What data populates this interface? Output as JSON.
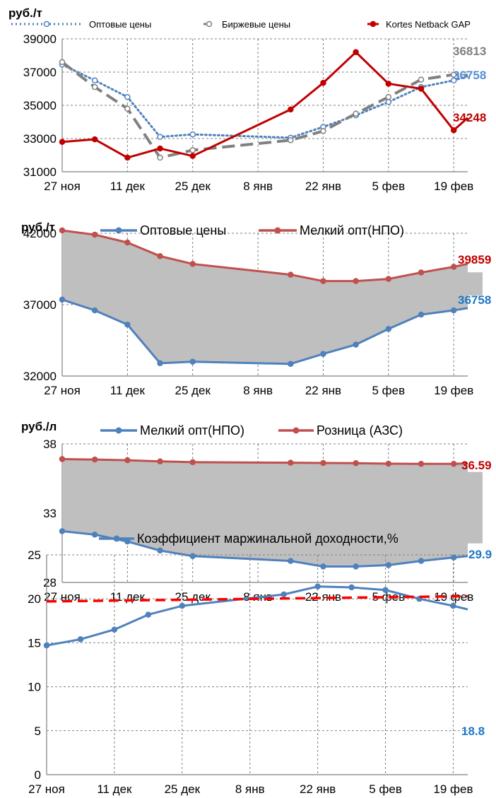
{
  "chart_data": [
    {
      "type": "line",
      "ylabel": "руб./т",
      "x": [
        "27 ноя",
        "4 дек",
        "11 дек",
        "18 дек",
        "25 дек",
        "15 янв",
        "22 янв",
        "29 янв",
        "5 фев",
        "12 фев",
        "19 фев",
        "22 фев"
      ],
      "x_ticks": [
        "27 ноя",
        "11 дек",
        "25 дек",
        "8 янв",
        "22 янв",
        "5 фев",
        "19 фев"
      ],
      "ylim": [
        31000,
        39000
      ],
      "y_ticks": [
        "31000",
        "33000",
        "35000",
        "37000",
        "39000"
      ],
      "grid": true,
      "legend_position": "top",
      "series": [
        {
          "name": "Оптовые цены",
          "color": "#4f81bd",
          "style": "dotted",
          "points": [
            [
              "27 ноя",
              37450
            ],
            [
              "4 дек",
              36500
            ],
            [
              "11 дек",
              35500
            ],
            [
              "18 дек",
              33100
            ],
            [
              "25 дек",
              33250
            ],
            [
              "15 янв",
              33050
            ],
            [
              "22 янв",
              33700
            ],
            [
              "29 янв",
              34400
            ],
            [
              "5 фев",
              35200
            ],
            [
              "12 фев",
              36100
            ],
            [
              "19 фев",
              36500
            ],
            [
              "22 фев",
              36758
            ]
          ]
        },
        {
          "name": "Биржевые цены",
          "color": "#808080",
          "style": "dashed",
          "points": [
            [
              "27 ноя",
              37600
            ],
            [
              "4 дек",
              36100
            ],
            [
              "11 дек",
              34800
            ],
            [
              "18 дек",
              31850
            ],
            [
              "25 дек",
              32300
            ],
            [
              "15 янв",
              32900
            ],
            [
              "22 янв",
              33450
            ],
            [
              "29 янв",
              34500
            ],
            [
              "5 фев",
              35500
            ],
            [
              "12 фев",
              36550
            ],
            [
              "19 фев",
              36850
            ],
            [
              "22 фев",
              36813
            ]
          ]
        },
        {
          "name": "Kortes Netback GAP",
          "color": "#c00000",
          "style": "solid",
          "points": [
            [
              "27 ноя",
              32800
            ],
            [
              "4 дек",
              32950
            ],
            [
              "11 дек",
              31850
            ],
            [
              "18 дек",
              32400
            ],
            [
              "25 дек",
              31950
            ],
            [
              "15 янв",
              34750
            ],
            [
              "22 янв",
              36350
            ],
            [
              "29 янв",
              38200
            ],
            [
              "5 фев",
              36300
            ],
            [
              "12 фев",
              36000
            ],
            [
              "19 фев",
              33500
            ],
            [
              "22 фев",
              34248
            ]
          ]
        }
      ],
      "end_labels": [
        {
          "text": "36813",
          "color": "#808080"
        },
        {
          "text": "36758",
          "color": "#548dd4"
        },
        {
          "text": "34248",
          "color": "#c00000"
        }
      ]
    },
    {
      "type": "area",
      "ylabel": "руб./т",
      "x": [
        "27 ноя",
        "4 дек",
        "11 дек",
        "18 дек",
        "25 дек",
        "15 янв",
        "22 янв",
        "29 янв",
        "5 фев",
        "12 фев",
        "19 фев",
        "22 фев"
      ],
      "x_ticks": [
        "27 ноя",
        "11 дек",
        "25 дек",
        "8 янв",
        "22 янв",
        "5 фев",
        "19 фев"
      ],
      "ylim": [
        32000,
        42000
      ],
      "y_ticks": [
        "32000",
        "37000",
        "42000"
      ],
      "grid": true,
      "legend_position": "top",
      "series": [
        {
          "name": "Оптовые цены",
          "color": "#4f81bd",
          "points": [
            [
              "27 ноя",
              37350
            ],
            [
              "4 дек",
              36600
            ],
            [
              "11 дек",
              35600
            ],
            [
              "18 дек",
              32900
            ],
            [
              "25 дек",
              33000
            ],
            [
              "15 янв",
              32850
            ],
            [
              "22 янв",
              33550
            ],
            [
              "29 янв",
              34200
            ],
            [
              "5 фев",
              35300
            ],
            [
              "12 фев",
              36300
            ],
            [
              "19 фев",
              36600
            ],
            [
              "22 фев",
              36758
            ]
          ]
        },
        {
          "name": "Мелкий опт(НПО)",
          "color": "#c0504d",
          "points": [
            [
              "27 ноя",
              42200
            ],
            [
              "4 дек",
              41900
            ],
            [
              "11 дек",
              41350
            ],
            [
              "18 дек",
              40400
            ],
            [
              "25 дек",
              39850
            ],
            [
              "15 янв",
              39100
            ],
            [
              "22 янв",
              38650
            ],
            [
              "29 янв",
              38650
            ],
            [
              "5 фев",
              38800
            ],
            [
              "12 фев",
              39250
            ],
            [
              "19 фев",
              39650
            ],
            [
              "22 фев",
              39859
            ]
          ]
        }
      ],
      "end_labels": [
        {
          "text": "39859",
          "color": "#c00000"
        },
        {
          "text": "36758",
          "color": "#1f77c4"
        }
      ]
    },
    {
      "type": "area",
      "ylabel": "руб./л",
      "x": [
        "27 ноя",
        "4 дек",
        "11 дек",
        "18 дек",
        "25 дек",
        "15 янв",
        "22 янв",
        "29 янв",
        "5 фев",
        "12 фев",
        "19 фев",
        "22 фев"
      ],
      "x_ticks": [
        "27 ноя",
        "11 дек",
        "25 дек",
        "8 янв",
        "22 янв",
        "5 фев",
        "19 фев"
      ],
      "ylim": [
        28,
        38
      ],
      "y_ticks": [
        "28",
        "33",
        "38"
      ],
      "grid": true,
      "legend_position": "top",
      "series": [
        {
          "name": "Мелкий опт(НПО)",
          "color": "#4f81bd",
          "points": [
            [
              "27 ноя",
              31.7
            ],
            [
              "4 дек",
              31.45
            ],
            [
              "11 дек",
              30.95
            ],
            [
              "18 дек",
              30.3
            ],
            [
              "25 дек",
              29.9
            ],
            [
              "15 янв",
              29.55
            ],
            [
              "22 янв",
              29.15
            ],
            [
              "29 янв",
              29.15
            ],
            [
              "5 фев",
              29.25
            ],
            [
              "12 фев",
              29.55
            ],
            [
              "19 фев",
              29.8
            ],
            [
              "22 фев",
              29.9
            ]
          ]
        },
        {
          "name": "Розница (АЗС)",
          "color": "#c0504d",
          "points": [
            [
              "27 ноя",
              36.9
            ],
            [
              "4 дек",
              36.87
            ],
            [
              "11 дек",
              36.82
            ],
            [
              "18 дек",
              36.74
            ],
            [
              "25 дек",
              36.68
            ],
            [
              "15 янв",
              36.64
            ],
            [
              "22 янв",
              36.62
            ],
            [
              "29 янв",
              36.61
            ],
            [
              "5 фев",
              36.57
            ],
            [
              "12 фев",
              36.56
            ],
            [
              "19 фев",
              36.56
            ],
            [
              "22 фев",
              36.59
            ]
          ]
        }
      ],
      "end_labels": [
        {
          "text": "36.59",
          "color": "#c00000"
        },
        {
          "text": "29.9",
          "color": "#1f77c4"
        }
      ]
    },
    {
      "type": "line",
      "x": [
        "27 ноя",
        "4 дек",
        "11 дек",
        "18 дек",
        "25 дек",
        "15 янв",
        "22 янв",
        "29 янв",
        "5 фев",
        "12 фев",
        "19 фев",
        "22 фев"
      ],
      "x_ticks": [
        "27 ноя",
        "11 дек",
        "25 дек",
        "8 янв",
        "22 янв",
        "5 фев",
        "19 фев"
      ],
      "ylim": [
        0,
        25
      ],
      "y_ticks": [
        "0",
        "5",
        "10",
        "15",
        "20",
        "25"
      ],
      "grid": true,
      "legend_position": "top",
      "series": [
        {
          "name": "Коэффициент маржинальной доходности,%",
          "color": "#4f81bd",
          "points": [
            [
              "27 ноя",
              14.7
            ],
            [
              "4 дек",
              15.4
            ],
            [
              "11 дек",
              16.5
            ],
            [
              "18 дек",
              18.2
            ],
            [
              "25 дек",
              19.2
            ],
            [
              "15 янв",
              20.5
            ],
            [
              "22 янв",
              21.4
            ],
            [
              "29 янв",
              21.3
            ],
            [
              "5 фев",
              21.0
            ],
            [
              "12 фев",
              20.0
            ],
            [
              "19 фев",
              19.2
            ],
            [
              "22 фев",
              18.8
            ]
          ]
        },
        {
          "name": "",
          "color": "#ff0000",
          "style": "dashed",
          "points": [
            [
              "27 ноя",
              19.7
            ],
            [
              "22 фев",
              20.3
            ]
          ]
        }
      ],
      "end_labels": [
        {
          "text": "18.8",
          "color": "#1f77c4"
        }
      ]
    }
  ]
}
